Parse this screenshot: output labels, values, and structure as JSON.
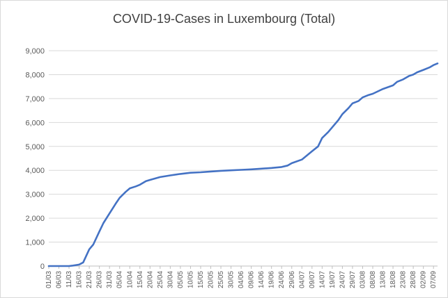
{
  "chart_data": {
    "type": "line",
    "title": "COVID-19-Cases in Luxembourg (Total)",
    "xlabel": "",
    "ylabel": "",
    "ylim": [
      0,
      9000
    ],
    "yticks": [
      "0",
      "1,000",
      "2,000",
      "3,000",
      "4,000",
      "5,000",
      "6,000",
      "7,000",
      "8,000",
      "9,000"
    ],
    "grid": "horizontal",
    "legend": "none",
    "color": "#4472c4",
    "x_tick_labels": [
      "01/03",
      "06/03",
      "11/03",
      "16/03",
      "21/03",
      "26/03",
      "31/03",
      "05/04",
      "10/04",
      "15/04",
      "20/04",
      "25/04",
      "30/04",
      "05/05",
      "10/05",
      "15/05",
      "20/05",
      "25/05",
      "30/05",
      "04/06",
      "09/06",
      "14/06",
      "19/06",
      "24/06",
      "29/06",
      "04/07",
      "09/07",
      "14/07",
      "19/07",
      "24/07",
      "29/07",
      "03/08",
      "08/08",
      "13/08",
      "18/08",
      "23/08",
      "28/08",
      "02/09",
      "07/09"
    ],
    "series": [
      {
        "points": [
          [
            "01/03",
            0
          ],
          [
            "06/03",
            0
          ],
          [
            "11/03",
            0
          ],
          [
            "13/03",
            20
          ],
          [
            "16/03",
            60
          ],
          [
            "18/03",
            150
          ],
          [
            "21/03",
            700
          ],
          [
            "23/03",
            900
          ],
          [
            "26/03",
            1450
          ],
          [
            "28/03",
            1800
          ],
          [
            "31/03",
            2200
          ],
          [
            "03/04",
            2600
          ],
          [
            "05/04",
            2850
          ],
          [
            "08/04",
            3100
          ],
          [
            "10/04",
            3250
          ],
          [
            "13/04",
            3330
          ],
          [
            "15/04",
            3400
          ],
          [
            "18/04",
            3550
          ],
          [
            "20/04",
            3600
          ],
          [
            "25/04",
            3720
          ],
          [
            "30/04",
            3790
          ],
          [
            "05/05",
            3850
          ],
          [
            "10/05",
            3900
          ],
          [
            "15/05",
            3920
          ],
          [
            "20/05",
            3950
          ],
          [
            "25/05",
            3980
          ],
          [
            "30/05",
            4000
          ],
          [
            "04/06",
            4020
          ],
          [
            "09/06",
            4040
          ],
          [
            "14/06",
            4070
          ],
          [
            "19/06",
            4100
          ],
          [
            "24/06",
            4140
          ],
          [
            "27/06",
            4200
          ],
          [
            "29/06",
            4300
          ],
          [
            "04/07",
            4450
          ],
          [
            "09/07",
            4800
          ],
          [
            "12/07",
            5000
          ],
          [
            "14/07",
            5350
          ],
          [
            "17/07",
            5600
          ],
          [
            "19/07",
            5800
          ],
          [
            "22/07",
            6100
          ],
          [
            "24/07",
            6350
          ],
          [
            "27/07",
            6600
          ],
          [
            "29/07",
            6800
          ],
          [
            "01/08",
            6900
          ],
          [
            "03/08",
            7050
          ],
          [
            "06/08",
            7150
          ],
          [
            "08/08",
            7200
          ],
          [
            "13/08",
            7400
          ],
          [
            "18/08",
            7550
          ],
          [
            "20/08",
            7700
          ],
          [
            "23/08",
            7800
          ],
          [
            "26/08",
            7950
          ],
          [
            "28/08",
            8000
          ],
          [
            "30/08",
            8100
          ],
          [
            "02/09",
            8200
          ],
          [
            "05/09",
            8300
          ],
          [
            "07/09",
            8400
          ],
          [
            "09/09",
            8470
          ]
        ]
      }
    ]
  }
}
